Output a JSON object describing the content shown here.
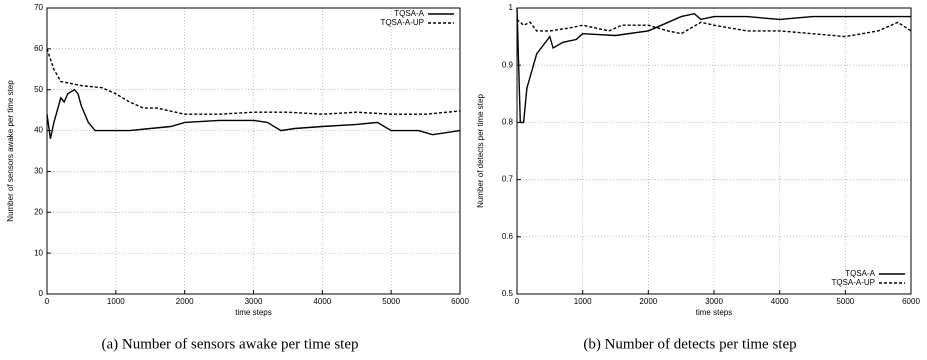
{
  "chart_data": [
    {
      "type": "line",
      "caption": "(a) Number of sensors awake per time step",
      "xlabel": "time steps",
      "ylabel": "Number of sensors awake per time step",
      "xlim": [
        0,
        6000
      ],
      "xticks": [
        0,
        1000,
        2000,
        3000,
        4000,
        5000,
        6000
      ],
      "ylim": [
        0,
        70
      ],
      "yticks": [
        0,
        10,
        20,
        30,
        40,
        50,
        60,
        70
      ],
      "grid": true,
      "legend": "top-right",
      "series": [
        {
          "name": "TQSA-A",
          "color": "#000000",
          "dash": "solid",
          "x": [
            0,
            50,
            100,
            200,
            250,
            300,
            400,
            450,
            500,
            600,
            700,
            800,
            1000,
            1200,
            1500,
            1800,
            2000,
            2500,
            3000,
            3200,
            3400,
            3600,
            4000,
            4500,
            4800,
            5000,
            5400,
            5600,
            6000
          ],
          "values": [
            44,
            38,
            42,
            48,
            47,
            49,
            50,
            49,
            46,
            42,
            40,
            40,
            40,
            40,
            40.5,
            41,
            42,
            42.5,
            42.5,
            42,
            40,
            40.5,
            41,
            41.5,
            42,
            40,
            40,
            39,
            40
          ]
        },
        {
          "name": "TQSA-A-UP",
          "color": "#000000",
          "dash": "dashed",
          "x": [
            0,
            100,
            200,
            500,
            800,
            1000,
            1200,
            1400,
            1600,
            2000,
            2500,
            3000,
            3500,
            4000,
            4500,
            5000,
            5500,
            6000
          ],
          "values": [
            60,
            55,
            52,
            51,
            50.5,
            49,
            47,
            45.5,
            45.5,
            44,
            44,
            44.5,
            44.5,
            44,
            44.5,
            44,
            44,
            44.8
          ]
        }
      ]
    },
    {
      "type": "line",
      "caption": "(b) Number of detects per time step",
      "xlabel": "time steps",
      "ylabel": "Number of detects per time step",
      "xlim": [
        0,
        6000
      ],
      "xticks": [
        0,
        1000,
        2000,
        3000,
        4000,
        5000,
        6000
      ],
      "ylim": [
        0.5,
        1
      ],
      "yticks": [
        0.5,
        0.6,
        0.7,
        0.8,
        0.9,
        1
      ],
      "grid": true,
      "legend": "bottom-right",
      "series": [
        {
          "name": "TQSA-A",
          "color": "#000000",
          "dash": "solid",
          "x": [
            0,
            50,
            100,
            150,
            300,
            500,
            550,
            700,
            900,
            1000,
            1500,
            2000,
            2200,
            2500,
            2700,
            2800,
            3000,
            3500,
            4000,
            4500,
            5000,
            6000
          ],
          "values": [
            1,
            0.8,
            0.8,
            0.86,
            0.92,
            0.95,
            0.93,
            0.94,
            0.945,
            0.955,
            0.952,
            0.96,
            0.97,
            0.985,
            0.99,
            0.98,
            0.985,
            0.985,
            0.98,
            0.985,
            0.985,
            0.985
          ]
        },
        {
          "name": "TQSA-A-UP",
          "color": "#000000",
          "dash": "dashed",
          "x": [
            0,
            100,
            200,
            300,
            500,
            800,
            1000,
            1400,
            1600,
            2000,
            2300,
            2500,
            2800,
            3000,
            3500,
            4000,
            4500,
            5000,
            5500,
            5800,
            6000
          ],
          "values": [
            0.98,
            0.97,
            0.975,
            0.96,
            0.96,
            0.965,
            0.97,
            0.96,
            0.97,
            0.97,
            0.96,
            0.955,
            0.975,
            0.97,
            0.96,
            0.96,
            0.955,
            0.95,
            0.96,
            0.975,
            0.96
          ]
        }
      ]
    }
  ]
}
